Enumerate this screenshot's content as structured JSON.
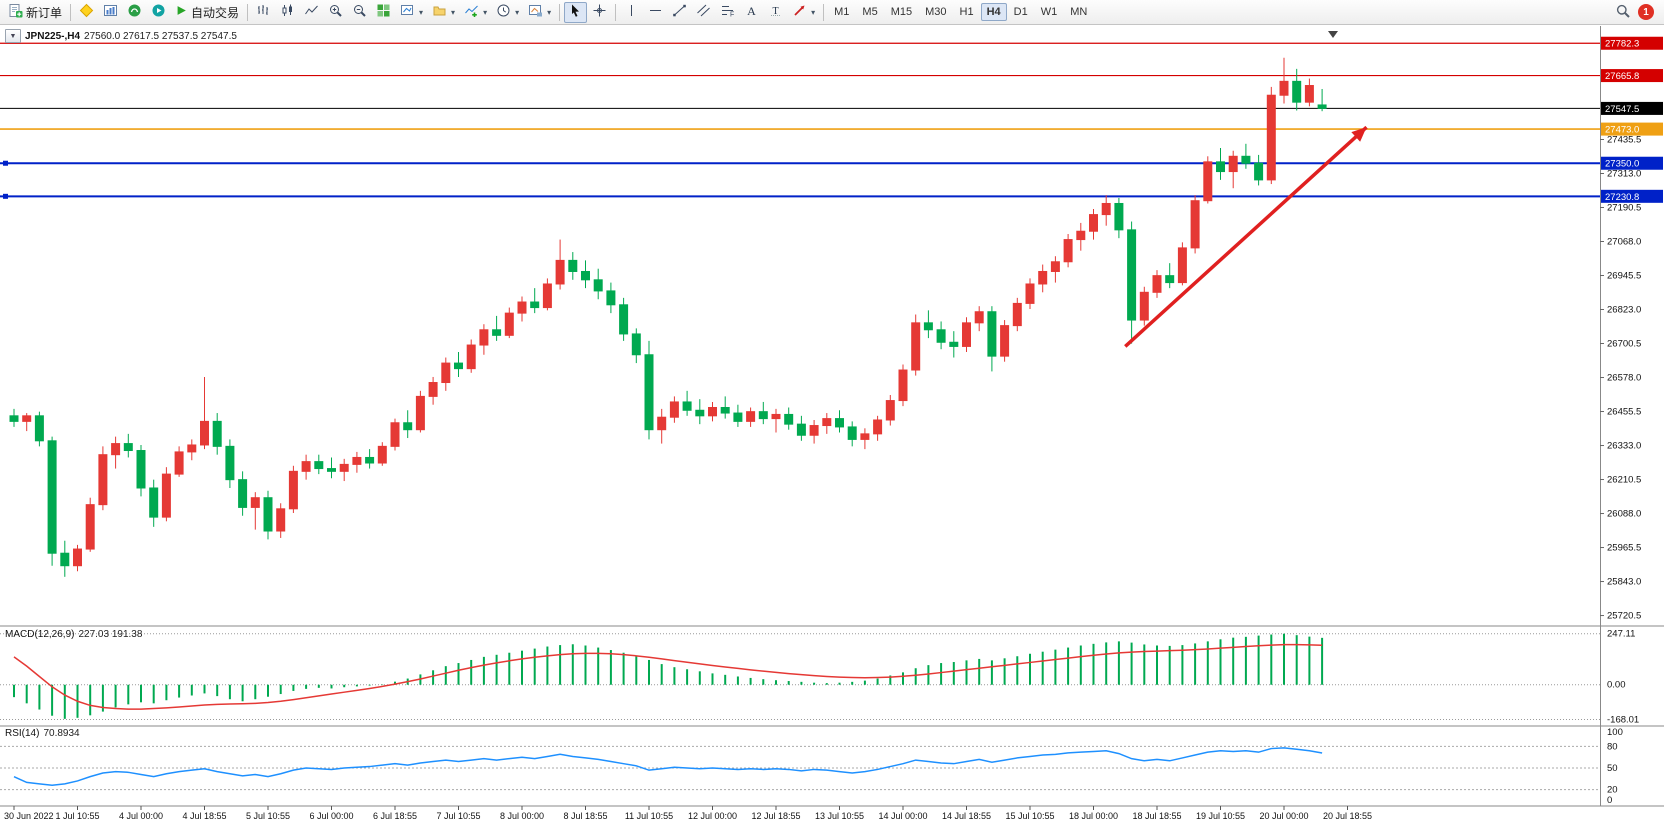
{
  "toolbar": {
    "new_order": "新订单",
    "auto_trading": "自动交易",
    "timeframes": [
      "M1",
      "M5",
      "M15",
      "M30",
      "H1",
      "H4",
      "D1",
      "W1",
      "MN"
    ],
    "active_timeframe": "H4",
    "badge_count": "1"
  },
  "chart_data": {
    "type": "candlestick",
    "symbol_period": "JPN225-,H4",
    "ohlc_text": "27560.0 27617.5 27537.5 27547.5",
    "current_ohlc": {
      "open": 27560.0,
      "high": 27617.5,
      "low": 27537.5,
      "close": 27547.5
    },
    "price_axis_labels": [
      "27435.5",
      "27313.0",
      "27190.5",
      "27068.0",
      "26945.5",
      "26823.0",
      "26700.5",
      "26578.0",
      "26455.5",
      "26333.0",
      "26210.5",
      "26088.0",
      "25965.5",
      "25843.0",
      "25720.5"
    ],
    "levels": [
      {
        "label": "27782.3",
        "price": 27782.3,
        "color": "#d40000",
        "width": 1.2,
        "handle": false
      },
      {
        "label": "27665.8",
        "price": 27665.8,
        "color": "#d40000",
        "width": 1.2,
        "handle": false
      },
      {
        "label": "27547.5",
        "price": 27547.5,
        "color": "#000000",
        "width": 1,
        "handle": false
      },
      {
        "label": "27473.0",
        "price": 27473.0,
        "color": "#efa014",
        "width": 1.6,
        "handle": false
      },
      {
        "label": "27350.0",
        "price": 27350.0,
        "color": "#0021c8",
        "width": 2,
        "handle": true
      },
      {
        "label": "27230.8",
        "price": 27230.8,
        "color": "#0021c8",
        "width": 2,
        "handle": true
      }
    ],
    "time_labels": [
      "30 Jun 2022",
      "1 Jul 10:55",
      "4 Jul 00:00",
      "4 Jul 18:55",
      "5 Jul 10:55",
      "6 Jul 00:00",
      "6 Jul 18:55",
      "7 Jul 10:55",
      "8 Jul 00:00",
      "8 Jul 18:55",
      "11 Jul 10:55",
      "12 Jul 00:00",
      "12 Jul 18:55",
      "13 Jul 10:55",
      "14 Jul 00:00",
      "14 Jul 18:55",
      "15 Jul 10:55",
      "18 Jul 00:00",
      "18 Jul 18:55",
      "19 Jul 10:55",
      "20 Jul 00:00",
      "20 Jul 18:55"
    ],
    "candles_ohlc": [
      [
        26440,
        26465,
        26400,
        26420
      ],
      [
        26420,
        26450,
        26385,
        26440
      ],
      [
        26440,
        26455,
        26330,
        26350
      ],
      [
        26350,
        26365,
        25900,
        25945
      ],
      [
        25945,
        25990,
        25860,
        25900
      ],
      [
        25900,
        25975,
        25880,
        25960
      ],
      [
        25960,
        26145,
        25950,
        26120
      ],
      [
        26120,
        26330,
        26100,
        26300
      ],
      [
        26300,
        26365,
        26250,
        26340
      ],
      [
        26340,
        26375,
        26290,
        26315
      ],
      [
        26315,
        26335,
        26150,
        26180
      ],
      [
        26180,
        26210,
        26040,
        26075
      ],
      [
        26075,
        26255,
        26060,
        26230
      ],
      [
        26230,
        26330,
        26220,
        26310
      ],
      [
        26310,
        26355,
        26280,
        26335
      ],
      [
        26335,
        26580,
        26320,
        26420
      ],
      [
        26420,
        26450,
        26300,
        26330
      ],
      [
        26330,
        26355,
        26180,
        26210
      ],
      [
        26210,
        26240,
        26080,
        26110
      ],
      [
        26110,
        26165,
        26030,
        26145
      ],
      [
        26145,
        26170,
        25995,
        26025
      ],
      [
        26025,
        26125,
        26000,
        26105
      ],
      [
        26105,
        26260,
        26090,
        26240
      ],
      [
        26240,
        26300,
        26210,
        26275
      ],
      [
        26275,
        26300,
        26230,
        26250
      ],
      [
        26250,
        26290,
        26215,
        26240
      ],
      [
        26240,
        26285,
        26205,
        26265
      ],
      [
        26265,
        26310,
        26235,
        26290
      ],
      [
        26290,
        26320,
        26250,
        26270
      ],
      [
        26270,
        26345,
        26260,
        26330
      ],
      [
        26330,
        26430,
        26315,
        26415
      ],
      [
        26415,
        26460,
        26360,
        26390
      ],
      [
        26390,
        26530,
        26380,
        26510
      ],
      [
        26510,
        26580,
        26480,
        26560
      ],
      [
        26560,
        26650,
        26530,
        26630
      ],
      [
        26630,
        26670,
        26580,
        26610
      ],
      [
        26610,
        26715,
        26595,
        26695
      ],
      [
        26695,
        26770,
        26660,
        26750
      ],
      [
        26750,
        26800,
        26710,
        26730
      ],
      [
        26730,
        26830,
        26720,
        26810
      ],
      [
        26810,
        26870,
        26780,
        26850
      ],
      [
        26850,
        26900,
        26810,
        26830
      ],
      [
        26830,
        26935,
        26820,
        26915
      ],
      [
        26915,
        27075,
        26895,
        27000
      ],
      [
        27000,
        27030,
        26930,
        26960
      ],
      [
        26960,
        27000,
        26900,
        26930
      ],
      [
        26930,
        26970,
        26860,
        26890
      ],
      [
        26890,
        26920,
        26810,
        26840
      ],
      [
        26840,
        26865,
        26710,
        26735
      ],
      [
        26735,
        26755,
        26630,
        26660
      ],
      [
        26660,
        26710,
        26355,
        26390
      ],
      [
        26390,
        26465,
        26340,
        26435
      ],
      [
        26435,
        26510,
        26415,
        26490
      ],
      [
        26490,
        26530,
        26440,
        26460
      ],
      [
        26460,
        26500,
        26410,
        26440
      ],
      [
        26440,
        26490,
        26420,
        26470
      ],
      [
        26470,
        26510,
        26430,
        26450
      ],
      [
        26450,
        26480,
        26400,
        26420
      ],
      [
        26420,
        26470,
        26400,
        26455
      ],
      [
        26455,
        26490,
        26410,
        26430
      ],
      [
        26430,
        26465,
        26380,
        26445
      ],
      [
        26445,
        26470,
        26390,
        26410
      ],
      [
        26410,
        26440,
        26350,
        26370
      ],
      [
        26370,
        26425,
        26340,
        26405
      ],
      [
        26405,
        26450,
        26375,
        26430
      ],
      [
        26430,
        26460,
        26380,
        26400
      ],
      [
        26400,
        26420,
        26330,
        26355
      ],
      [
        26355,
        26395,
        26320,
        26375
      ],
      [
        26375,
        26440,
        26350,
        26425
      ],
      [
        26425,
        26515,
        26405,
        26495
      ],
      [
        26495,
        26625,
        26475,
        26605
      ],
      [
        26605,
        26805,
        26585,
        26775
      ],
      [
        26775,
        26820,
        26720,
        26750
      ],
      [
        26750,
        26780,
        26680,
        26705
      ],
      [
        26705,
        26745,
        26650,
        26690
      ],
      [
        26690,
        26795,
        26670,
        26775
      ],
      [
        26775,
        26835,
        26745,
        26815
      ],
      [
        26815,
        26835,
        26600,
        26655
      ],
      [
        26655,
        26785,
        26635,
        26765
      ],
      [
        26765,
        26865,
        26745,
        26845
      ],
      [
        26845,
        26935,
        26825,
        26915
      ],
      [
        26915,
        26985,
        26885,
        26960
      ],
      [
        26960,
        27015,
        26920,
        26995
      ],
      [
        26995,
        27095,
        26975,
        27075
      ],
      [
        27075,
        27135,
        27035,
        27105
      ],
      [
        27105,
        27185,
        27075,
        27165
      ],
      [
        27165,
        27235,
        27125,
        27205
      ],
      [
        27205,
        27225,
        27080,
        27110
      ],
      [
        27110,
        27140,
        26700,
        26785
      ],
      [
        26785,
        26905,
        26765,
        26885
      ],
      [
        26885,
        26965,
        26865,
        26945
      ],
      [
        26945,
        26990,
        26900,
        26920
      ],
      [
        26920,
        27065,
        26910,
        27045
      ],
      [
        27045,
        27235,
        27025,
        27215
      ],
      [
        27215,
        27375,
        27205,
        27355
      ],
      [
        27355,
        27405,
        27290,
        27320
      ],
      [
        27320,
        27395,
        27260,
        27375
      ],
      [
        27375,
        27420,
        27330,
        27350
      ],
      [
        27350,
        27380,
        27270,
        27290
      ],
      [
        27290,
        27625,
        27275,
        27595
      ],
      [
        27595,
        27730,
        27565,
        27645
      ],
      [
        27645,
        27690,
        27540,
        27570
      ],
      [
        27570,
        27655,
        27555,
        27630
      ],
      [
        27560,
        27617.5,
        27537.5,
        27547.5
      ]
    ],
    "macd": {
      "label": "MACD(12,26,9)",
      "values_text": "227.03 191.38",
      "axis_labels": [
        "247.11",
        "0.00",
        "-168.01"
      ],
      "histogram": [
        -60,
        -90,
        -120,
        -150,
        -165,
        -160,
        -148,
        -130,
        -110,
        -95,
        -85,
        -90,
        -75,
        -62,
        -52,
        -42,
        -55,
        -70,
        -80,
        -70,
        -58,
        -45,
        -30,
        -20,
        -15,
        -18,
        -12,
        -8,
        -4,
        2,
        15,
        30,
        50,
        70,
        90,
        105,
        120,
        135,
        145,
        155,
        165,
        175,
        185,
        192,
        196,
        190,
        180,
        168,
        155,
        140,
        120,
        100,
        85,
        75,
        65,
        55,
        48,
        40,
        33,
        27,
        22,
        18,
        14,
        10,
        8,
        10,
        14,
        20,
        30,
        45,
        60,
        80,
        95,
        105,
        110,
        118,
        125,
        118,
        128,
        138,
        150,
        160,
        170,
        180,
        190,
        198,
        205,
        210,
        204,
        195,
        190,
        188,
        192,
        200,
        210,
        220,
        228,
        232,
        238,
        243,
        247,
        240,
        233,
        227.03
      ],
      "signal": [
        135,
        90,
        40,
        -10,
        -50,
        -80,
        -100,
        -110,
        -115,
        -118,
        -118,
        -115,
        -112,
        -108,
        -103,
        -98,
        -95,
        -93,
        -92,
        -90,
        -86,
        -80,
        -72,
        -63,
        -54,
        -45,
        -36,
        -27,
        -18,
        -8,
        3,
        15,
        28,
        42,
        56,
        70,
        83,
        95,
        106,
        116,
        125,
        133,
        140,
        146,
        150,
        152,
        152,
        150,
        146,
        140,
        133,
        125,
        117,
        109,
        101,
        93,
        86,
        79,
        72,
        66,
        60,
        54,
        49,
        44,
        40,
        37,
        35,
        34,
        35,
        37,
        41,
        46,
        52,
        59,
        66,
        73,
        80,
        87,
        94,
        101,
        108,
        115,
        122,
        129,
        136,
        143,
        149,
        154,
        158,
        161,
        163,
        165,
        167,
        170,
        173,
        177,
        181,
        185,
        189,
        192,
        194,
        194,
        193,
        191.38
      ]
    },
    "rsi": {
      "label": "RSI(14)",
      "value_text": "70.8934",
      "axis_labels": [
        "100",
        "80",
        "50",
        "20",
        "0"
      ],
      "level_lines": [
        80,
        50,
        20
      ],
      "values": [
        38,
        30,
        28,
        26,
        28,
        32,
        38,
        43,
        45,
        44,
        41,
        38,
        42,
        45,
        47,
        49,
        45,
        42,
        39,
        41,
        38,
        42,
        47,
        50,
        49,
        48,
        50,
        51,
        52,
        54,
        56,
        54,
        57,
        59,
        61,
        59,
        61,
        63,
        61,
        63,
        65,
        63,
        66,
        69,
        66,
        64,
        62,
        59,
        56,
        53,
        47,
        49,
        51,
        50,
        49,
        50,
        49,
        48,
        49,
        48,
        49,
        48,
        46,
        48,
        47,
        45,
        43,
        45,
        48,
        52,
        56,
        61,
        59,
        57,
        56,
        59,
        62,
        58,
        61,
        64,
        66,
        68,
        69,
        71,
        72,
        73,
        74,
        70,
        63,
        60,
        62,
        60,
        64,
        68,
        72,
        74,
        73,
        74,
        72,
        77,
        78,
        76,
        74,
        70.89
      ]
    },
    "arrow": {
      "from_bar": 87.5,
      "from_price": 26690,
      "to_bar": 106.5,
      "to_price": 27480
    },
    "colors": {
      "bull": "#e53935",
      "bear": "#00a950",
      "macd_hist": "#00a950",
      "macd_signal": "#e53935",
      "rsi_line": "#1e90ff",
      "arrow": "#e02020",
      "axis_text": "#111111",
      "grid_dotted": "#9a9a9a"
    }
  }
}
